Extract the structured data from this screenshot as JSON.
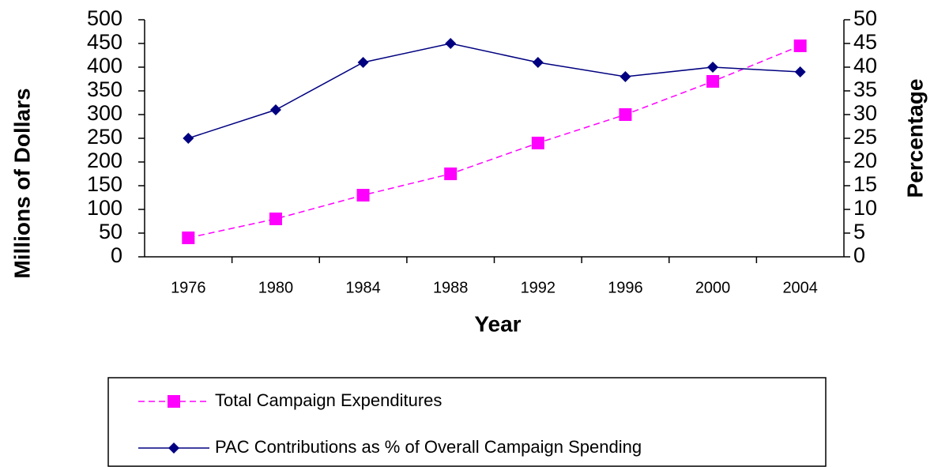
{
  "chart_data": {
    "type": "line",
    "x_label": "Year",
    "y_label": "Millions of Dollars",
    "y2_label": "Percentage",
    "categories": [
      "1976",
      "1980",
      "1984",
      "1988",
      "1992",
      "1996",
      "2000",
      "2004"
    ],
    "series": [
      {
        "name": "Total Campaign Expenditures",
        "color": "#ff00ff",
        "marker": "square",
        "dashed": true,
        "values": [
          40,
          80,
          130,
          175,
          240,
          300,
          370,
          445
        ]
      },
      {
        "name": "PAC Contributions as % of Overall Campaign Spending",
        "color": "#000080",
        "marker": "diamond",
        "dashed": false,
        "axis": "y2",
        "values": [
          25,
          31,
          41,
          45,
          41,
          38,
          40,
          39
        ]
      }
    ],
    "ylim": [
      0,
      500
    ],
    "yticks": [
      0,
      50,
      100,
      150,
      200,
      250,
      300,
      350,
      400,
      450,
      500
    ],
    "y2lim": [
      0,
      50
    ],
    "y2ticks": [
      0,
      5,
      10,
      15,
      20,
      25,
      30,
      35,
      40,
      45,
      50
    ],
    "grid": false
  }
}
